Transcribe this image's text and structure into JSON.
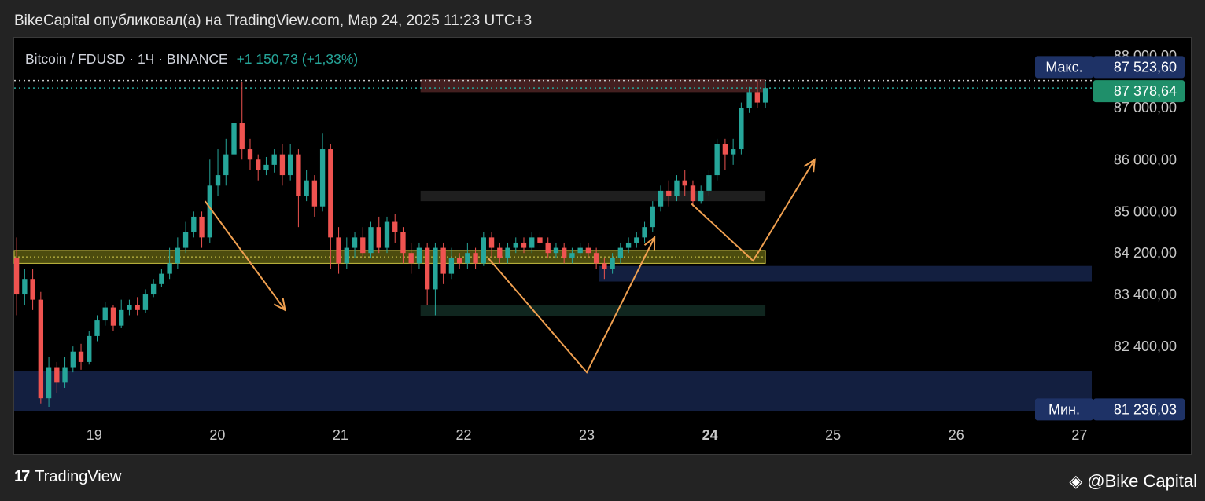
{
  "header": {
    "published": "BikeCapital опубликовал(а) на TradingView.com, Мар 24, 2025 11:23 UTC+3"
  },
  "symbol": {
    "name": "Bitcoin / FDUSD · 1Ч · BINANCE",
    "change": "+1 150,73 (+1,33%)"
  },
  "footer": {
    "brand": "TradingView",
    "watermark": "@Bike Capital"
  },
  "colors": {
    "up": "#26a69a",
    "down": "#ef5350",
    "arrow": "#f0a050",
    "zone_yellow": "#8a8a1a",
    "zone_blue": "#1a2a55",
    "label_blue": "#1e3266",
    "label_green": "#1f8f6a"
  },
  "chart_data": {
    "type": "candlestick",
    "timeframe": "1Ч",
    "y_axis_ticks": [
      "88 000,00",
      "87 000,00",
      "86 000,00",
      "85 000,00",
      "84 200,00",
      "83 400,00",
      "82 400,00"
    ],
    "y_tick_values": [
      88000,
      87000,
      86000,
      85000,
      84200,
      83400,
      82400
    ],
    "x_axis_ticks": [
      "19",
      "20",
      "21",
      "22",
      "23",
      "24",
      "25",
      "26",
      "27"
    ],
    "x_tick_values": [
      19,
      20,
      21,
      22,
      23,
      24,
      25,
      26,
      27
    ],
    "x_range": [
      18.35,
      27.1
    ],
    "y_range": [
      81100,
      88350
    ],
    "markers": {
      "max": {
        "label": "Макс.",
        "value": "87 523,60",
        "price": 87523.6
      },
      "current": {
        "value": "87 378,64",
        "price": 87378.64
      },
      "min": {
        "label": "Мин.",
        "value": "81 236,03",
        "price": 81236.03
      }
    },
    "zones": [
      {
        "name": "resistance",
        "x": [
          21.65,
          24.45
        ],
        "y": [
          87300,
          87550
        ],
        "color": "#5a2a2a"
      },
      {
        "name": "grey-range",
        "x": [
          21.65,
          24.45
        ],
        "y": [
          85200,
          85400
        ],
        "color": "#2a2a2a"
      },
      {
        "name": "support-yellow",
        "x": [
          18.35,
          24.45
        ],
        "y": [
          84000,
          84250
        ],
        "color": "#8a8a1a"
      },
      {
        "name": "blue-upper",
        "x": [
          23.1,
          27.1
        ],
        "y": [
          83650,
          83950
        ],
        "color": "#1a2a55"
      },
      {
        "name": "green-range",
        "x": [
          21.65,
          24.45
        ],
        "y": [
          82980,
          83200
        ],
        "color": "#15332a"
      },
      {
        "name": "blue-lower",
        "x": [
          18.35,
          27.1
        ],
        "y": [
          81150,
          81920
        ],
        "color": "#1a2a55"
      }
    ],
    "paths": [
      {
        "name": "down-arrow-left",
        "points": [
          [
            19.9,
            85200
          ],
          [
            20.55,
            83100
          ]
        ],
        "arrow": true
      },
      {
        "name": "v-path",
        "points": [
          [
            22.2,
            84100
          ],
          [
            23.0,
            81900
          ],
          [
            23.55,
            84500
          ]
        ],
        "arrow": true
      },
      {
        "name": "projection-path",
        "points": [
          [
            23.85,
            85150
          ],
          [
            24.35,
            84050
          ],
          [
            24.85,
            86000
          ]
        ],
        "arrow": true
      }
    ],
    "candles": [
      [
        84100,
        83400,
        84500,
        83000
      ],
      [
        83400,
        83700,
        83900,
        83200
      ],
      [
        83700,
        83300,
        83900,
        83100
      ],
      [
        83300,
        81400,
        83450,
        81300
      ],
      [
        81400,
        82000,
        82200,
        81236
      ],
      [
        82000,
        81700,
        82100,
        81500
      ],
      [
        81700,
        82000,
        82200,
        81600
      ],
      [
        82000,
        82300,
        82400,
        81900
      ],
      [
        82300,
        82100,
        82450,
        81950
      ],
      [
        82100,
        82600,
        82700,
        82050
      ],
      [
        82600,
        82900,
        83000,
        82500
      ],
      [
        82900,
        83150,
        83250,
        82800
      ],
      [
        83150,
        82800,
        83200,
        82700
      ],
      [
        82800,
        83100,
        83300,
        82750
      ],
      [
        83100,
        83200,
        83300,
        83000
      ],
      [
        83200,
        83100,
        83350,
        83000
      ],
      [
        83100,
        83400,
        83500,
        83050
      ],
      [
        83400,
        83600,
        83700,
        83350
      ],
      [
        83600,
        83800,
        83900,
        83550
      ],
      [
        83800,
        84000,
        84300,
        83700
      ],
      [
        84000,
        84300,
        84500,
        83900
      ],
      [
        84300,
        84600,
        84800,
        84200
      ],
      [
        84600,
        84900,
        85000,
        84500
      ],
      [
        84900,
        84500,
        85000,
        84300
      ],
      [
        84500,
        85500,
        86000,
        84400
      ],
      [
        85500,
        85700,
        86200,
        85300
      ],
      [
        85700,
        86100,
        86400,
        85500
      ],
      [
        86100,
        86700,
        87200,
        86000
      ],
      [
        86700,
        86200,
        87500,
        86000
      ],
      [
        86200,
        86000,
        86400,
        85800
      ],
      [
        86000,
        85800,
        86100,
        85600
      ],
      [
        85800,
        85900,
        86050,
        85700
      ],
      [
        85900,
        86100,
        86200,
        85750
      ],
      [
        86100,
        85700,
        86300,
        85500
      ],
      [
        85700,
        86100,
        86300,
        85600
      ],
      [
        86100,
        85300,
        86200,
        84700
      ],
      [
        85300,
        85600,
        85800,
        85200
      ],
      [
        85600,
        85100,
        85700,
        84900
      ],
      [
        85100,
        86200,
        86500,
        85000
      ],
      [
        86200,
        84500,
        86300,
        83900
      ],
      [
        84500,
        84000,
        84700,
        83800
      ],
      [
        84000,
        84300,
        84500,
        83900
      ],
      [
        84300,
        84500,
        84600,
        84100
      ],
      [
        84500,
        84200,
        84700,
        84100
      ],
      [
        84200,
        84700,
        84800,
        84100
      ],
      [
        84700,
        84300,
        84900,
        84200
      ],
      [
        84300,
        84800,
        84900,
        84200
      ],
      [
        84800,
        84600,
        84950,
        84400
      ],
      [
        84600,
        84200,
        84700,
        84000
      ],
      [
        84200,
        84000,
        84400,
        83800
      ],
      [
        84000,
        84300,
        84400,
        83900
      ],
      [
        84300,
        83500,
        84400,
        83200
      ],
      [
        83500,
        84300,
        84400,
        83000
      ],
      [
        84300,
        83800,
        84400,
        83600
      ],
      [
        83800,
        84100,
        84300,
        83700
      ],
      [
        84100,
        84000,
        84200,
        83900
      ],
      [
        84000,
        84200,
        84400,
        83900
      ],
      [
        84200,
        84000,
        84300,
        83900
      ],
      [
        84000,
        84500,
        84600,
        83950
      ],
      [
        84500,
        84300,
        84600,
        84100
      ],
      [
        84300,
        84100,
        84400,
        84000
      ],
      [
        84100,
        84300,
        84400,
        84000
      ],
      [
        84300,
        84400,
        84500,
        84200
      ],
      [
        84400,
        84300,
        84500,
        84200
      ],
      [
        84300,
        84500,
        84600,
        84200
      ],
      [
        84500,
        84400,
        84600,
        84300
      ],
      [
        84400,
        84200,
        84500,
        84100
      ],
      [
        84200,
        84300,
        84400,
        84100
      ],
      [
        84300,
        84100,
        84400,
        84000
      ],
      [
        84100,
        84200,
        84300,
        84000
      ],
      [
        84200,
        84300,
        84400,
        84100
      ],
      [
        84300,
        84200,
        84400,
        84100
      ],
      [
        84200,
        84000,
        84300,
        83900
      ],
      [
        84000,
        83900,
        84100,
        83700
      ],
      [
        83900,
        84100,
        84200,
        83800
      ],
      [
        84100,
        84300,
        84400,
        84000
      ],
      [
        84300,
        84400,
        84500,
        84200
      ],
      [
        84400,
        84500,
        84600,
        84300
      ],
      [
        84500,
        84700,
        84800,
        84400
      ],
      [
        84700,
        85100,
        85200,
        84600
      ],
      [
        85100,
        85400,
        85500,
        85000
      ],
      [
        85400,
        85300,
        85600,
        85100
      ],
      [
        85300,
        85600,
        85700,
        85200
      ],
      [
        85600,
        85500,
        85800,
        85300
      ],
      [
        85500,
        85200,
        85600,
        85100
      ],
      [
        85200,
        85400,
        85500,
        85150
      ],
      [
        85400,
        85700,
        85800,
        85300
      ],
      [
        85700,
        86300,
        86400,
        85600
      ],
      [
        86300,
        86100,
        86400,
        85800
      ],
      [
        86100,
        86200,
        86400,
        85900
      ],
      [
        86200,
        87000,
        87100,
        86100
      ],
      [
        87000,
        87300,
        87400,
        86900
      ],
      [
        87300,
        87100,
        87523.6,
        87000
      ],
      [
        87100,
        87378.64,
        87500,
        87000
      ]
    ]
  }
}
